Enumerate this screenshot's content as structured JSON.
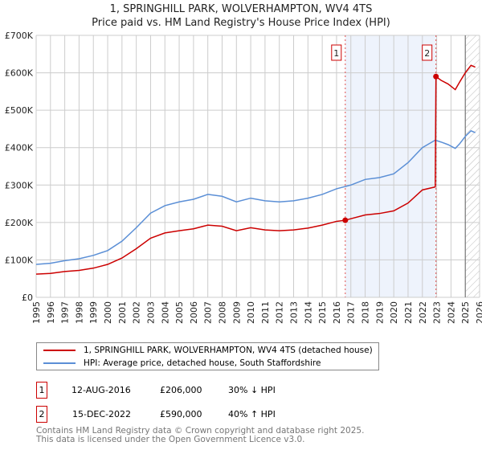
{
  "title": "1, SPRINGHILL PARK, WOLVERHAMPTON, WV4 4TS",
  "subtitle": "Price paid vs. HM Land Registry's House Price Index (HPI)",
  "chart_data": {
    "type": "line",
    "xlim": [
      1995,
      2026
    ],
    "ylim": [
      0,
      700000
    ],
    "yticks": [
      {
        "v": 0,
        "l": "£0"
      },
      {
        "v": 100000,
        "l": "£100K"
      },
      {
        "v": 200000,
        "l": "£200K"
      },
      {
        "v": 300000,
        "l": "£300K"
      },
      {
        "v": 400000,
        "l": "£400K"
      },
      {
        "v": 500000,
        "l": "£500K"
      },
      {
        "v": 600000,
        "l": "£600K"
      },
      {
        "v": 700000,
        "l": "£700K"
      }
    ],
    "xticks": [
      "1995",
      "1996",
      "1997",
      "1998",
      "1999",
      "2000",
      "2001",
      "2002",
      "2003",
      "2004",
      "2005",
      "2006",
      "2007",
      "2008",
      "2009",
      "2010",
      "2011",
      "2012",
      "2013",
      "2014",
      "2015",
      "2016",
      "2017",
      "2018",
      "2019",
      "2020",
      "2021",
      "2022",
      "2023",
      "2024",
      "2025",
      "2026"
    ],
    "series": [
      {
        "name": "1, SPRINGHILL PARK, WOLVERHAMPTON, WV4 4TS (detached house)",
        "color": "#cc0000",
        "x": [
          1995,
          1996,
          1997,
          1998,
          1999,
          2000,
          2001,
          2002,
          2003,
          2004,
          2005,
          2006,
          2007,
          2008,
          2009,
          2010,
          2011,
          2012,
          2013,
          2014,
          2015,
          2016,
          2016.61,
          2017,
          2018,
          2019,
          2020,
          2021,
          2022,
          2022.9,
          2022.95,
          2023.3,
          2023.8,
          2024.3,
          2024.6,
          2025,
          2025.4,
          2025.7
        ],
        "y": [
          62000,
          64000,
          69000,
          72000,
          78000,
          88000,
          105000,
          130000,
          158000,
          172000,
          178000,
          183000,
          193000,
          190000,
          178000,
          186000,
          180000,
          178000,
          180000,
          185000,
          193000,
          203000,
          206000,
          210000,
          220000,
          224000,
          231000,
          252000,
          287000,
          295000,
          590000,
          580000,
          570000,
          555000,
          575000,
          600000,
          620000,
          615000
        ]
      },
      {
        "name": "HPI: Average price, detached house, South Staffordshire",
        "color": "#5b8fd6",
        "x": [
          1995,
          1996,
          1997,
          1998,
          1999,
          2000,
          2001,
          2002,
          2003,
          2004,
          2005,
          2006,
          2007,
          2008,
          2009,
          2010,
          2011,
          2012,
          2013,
          2014,
          2015,
          2016,
          2017,
          2018,
          2019,
          2020,
          2021,
          2022,
          2022.9,
          2023.3,
          2023.8,
          2024.3,
          2024.6,
          2025,
          2025.4,
          2025.7
        ],
        "y": [
          88000,
          91000,
          98000,
          103000,
          112000,
          125000,
          150000,
          186000,
          225000,
          245000,
          255000,
          262000,
          275000,
          270000,
          255000,
          265000,
          258000,
          255000,
          258000,
          265000,
          275000,
          290000,
          300000,
          315000,
          320000,
          330000,
          360000,
          400000,
          420000,
          415000,
          408000,
          398000,
          410000,
          430000,
          445000,
          440000
        ]
      }
    ],
    "transactions": [
      {
        "label": "1",
        "x": 2016.61,
        "y": 206000
      },
      {
        "label": "2",
        "x": 2022.95,
        "y": 590000
      }
    ],
    "shaded_between": [
      2016.61,
      2022.95
    ],
    "hatched_from": 2025.0
  },
  "legend": [
    {
      "label": "1, SPRINGHILL PARK, WOLVERHAMPTON, WV4 4TS (detached house)",
      "color": "#cc0000"
    },
    {
      "label": "HPI: Average price, detached house, South Staffordshire",
      "color": "#5b8fd6"
    }
  ],
  "rows": [
    {
      "num": "1",
      "date": "12-AUG-2016",
      "price": "£206,000",
      "hpi": "30% ↓ HPI"
    },
    {
      "num": "2",
      "date": "15-DEC-2022",
      "price": "£590,000",
      "hpi": "40% ↑ HPI"
    }
  ],
  "footer": [
    "Contains HM Land Registry data © Crown copyright and database right 2025.",
    "This data is licensed under the Open Government Licence v3.0."
  ]
}
